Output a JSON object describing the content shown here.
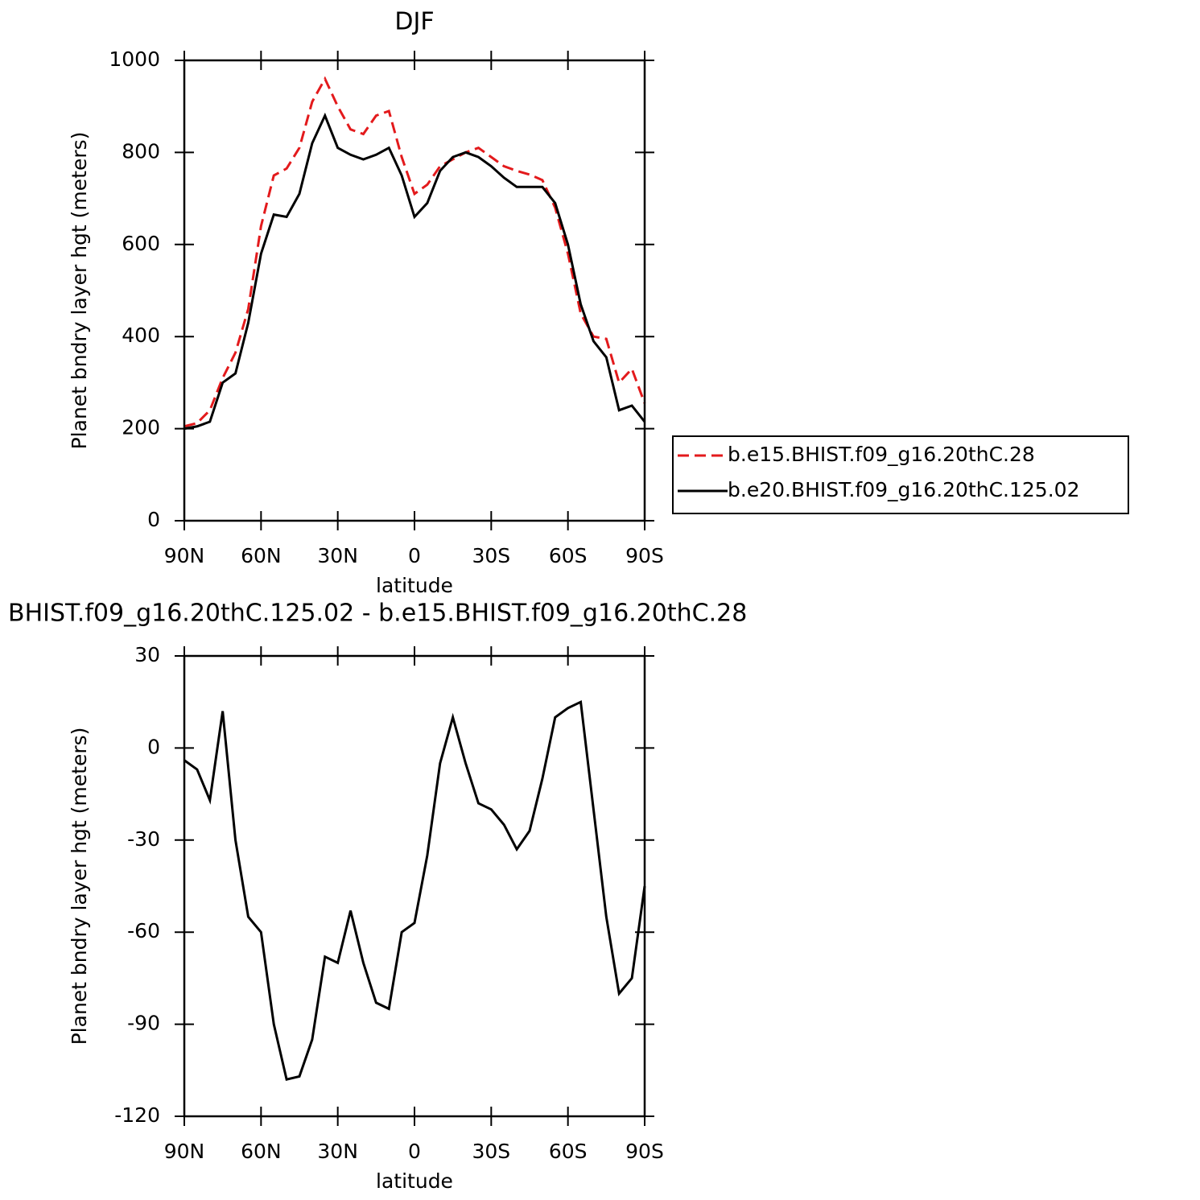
{
  "chart_data": [
    {
      "type": "line",
      "title": "DJF",
      "x_label": "latitude",
      "y_label": "Planet bndry layer hgt (meters)",
      "x": [
        90,
        85,
        80,
        75,
        70,
        65,
        60,
        55,
        50,
        45,
        40,
        35,
        30,
        25,
        20,
        15,
        10,
        5,
        0,
        -5,
        -10,
        -15,
        -20,
        -25,
        -30,
        -35,
        -40,
        -45,
        -50,
        -55,
        -60,
        -65,
        -70,
        -75,
        -80,
        -85,
        -90
      ],
      "xlim": [
        90,
        -90
      ],
      "xticks": [
        {
          "value": 90,
          "label": "90N"
        },
        {
          "value": 60,
          "label": "60N"
        },
        {
          "value": 30,
          "label": "30N"
        },
        0,
        {
          "value": -30,
          "label": "30S"
        },
        {
          "value": -60,
          "label": "60S"
        },
        {
          "value": -90,
          "label": "90S"
        }
      ],
      "ylim": [
        0,
        1000
      ],
      "yticks": [
        0,
        200,
        400,
        600,
        800,
        1000
      ],
      "legend": "right",
      "series": [
        {
          "name": "b.e15.BHIST.f09_g16.20thC.28",
          "color": "#e31a1c",
          "linestyle": "dashed",
          "values": [
            205,
            212,
            240,
            310,
            365,
            460,
            640,
            750,
            765,
            810,
            910,
            960,
            900,
            850,
            840,
            880,
            890,
            790,
            710,
            730,
            770,
            785,
            800,
            810,
            790,
            770,
            760,
            752,
            740,
            680,
            580,
            450,
            400,
            395,
            300,
            330,
            255
          ]
        },
        {
          "name": "b.e20.BHIST.f09_g16.20thC.125.02",
          "color": "#000000",
          "linestyle": "solid",
          "values": [
            200,
            205,
            215,
            300,
            320,
            430,
            580,
            665,
            660,
            710,
            820,
            880,
            810,
            795,
            785,
            795,
            810,
            750,
            660,
            690,
            760,
            790,
            800,
            790,
            770,
            745,
            725,
            725,
            725,
            690,
            600,
            470,
            390,
            355,
            240,
            250,
            215
          ]
        }
      ]
    },
    {
      "type": "line",
      "title": "BHIST.f09_g16.20thC.125.02 - b.e15.BHIST.f09_g16.20thC.28",
      "x_label": "latitude",
      "y_label": "Planet bndry layer hgt (meters)",
      "x": [
        90,
        85,
        80,
        75,
        70,
        65,
        60,
        55,
        50,
        45,
        40,
        35,
        30,
        25,
        20,
        15,
        10,
        5,
        0,
        -5,
        -10,
        -15,
        -20,
        -25,
        -30,
        -35,
        -40,
        -45,
        -50,
        -55,
        -60,
        -65,
        -70,
        -75,
        -80,
        -85,
        -90
      ],
      "xlim": [
        90,
        -90
      ],
      "xticks": [
        {
          "value": 90,
          "label": "90N"
        },
        {
          "value": 60,
          "label": "60N"
        },
        {
          "value": 30,
          "label": "30N"
        },
        0,
        {
          "value": -30,
          "label": "30S"
        },
        {
          "value": -60,
          "label": "60S"
        },
        {
          "value": -90,
          "label": "90S"
        }
      ],
      "ylim": [
        -120,
        30
      ],
      "yticks": [
        -120,
        -90,
        -60,
        -30,
        0,
        30
      ],
      "series": [
        {
          "color": "#000000",
          "linestyle": "solid",
          "values": [
            -4,
            -7,
            -17,
            12,
            -30,
            -55,
            -60,
            -90,
            -108,
            -107,
            -95,
            -68,
            -70,
            -53,
            -70,
            -83,
            -85,
            -60,
            -57,
            -35,
            -5,
            10,
            -5,
            -18,
            -20,
            -25,
            -33,
            -27,
            -10,
            10,
            13,
            15,
            -20,
            -55,
            -80,
            -75,
            -45
          ]
        }
      ]
    }
  ]
}
